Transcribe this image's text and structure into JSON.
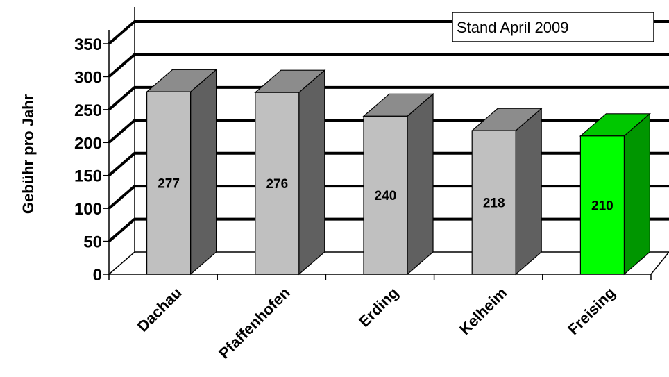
{
  "chart_data": {
    "type": "bar",
    "style": "3d-column",
    "categories": [
      "Dachau",
      "Pfaffenhofen",
      "Erding",
      "Kelheim",
      "Freising"
    ],
    "values": [
      277,
      276,
      240,
      218,
      210
    ],
    "value_labels": [
      "277",
      "276",
      "240",
      "218",
      "210"
    ],
    "ylabel": "Gebühr pro Jahr",
    "ylim": [
      0,
      350
    ],
    "yticks": [
      0,
      50,
      100,
      150,
      200,
      250,
      300,
      350
    ],
    "ytick_labels": [
      "0",
      "50",
      "100",
      "150",
      "200",
      "250",
      "300",
      "350"
    ],
    "grid": true,
    "annotation": "Stand April 2009",
    "annotation_position": "top-right",
    "colors": {
      "bar_front": "#c0c0c0",
      "bar_top": "#8c8c8c",
      "bar_side": "#606060",
      "highlight_front": "#00ff00",
      "highlight_top": "#00c800",
      "highlight_side": "#009600",
      "gridline": "#000000"
    },
    "highlight_category": "Freising"
  }
}
